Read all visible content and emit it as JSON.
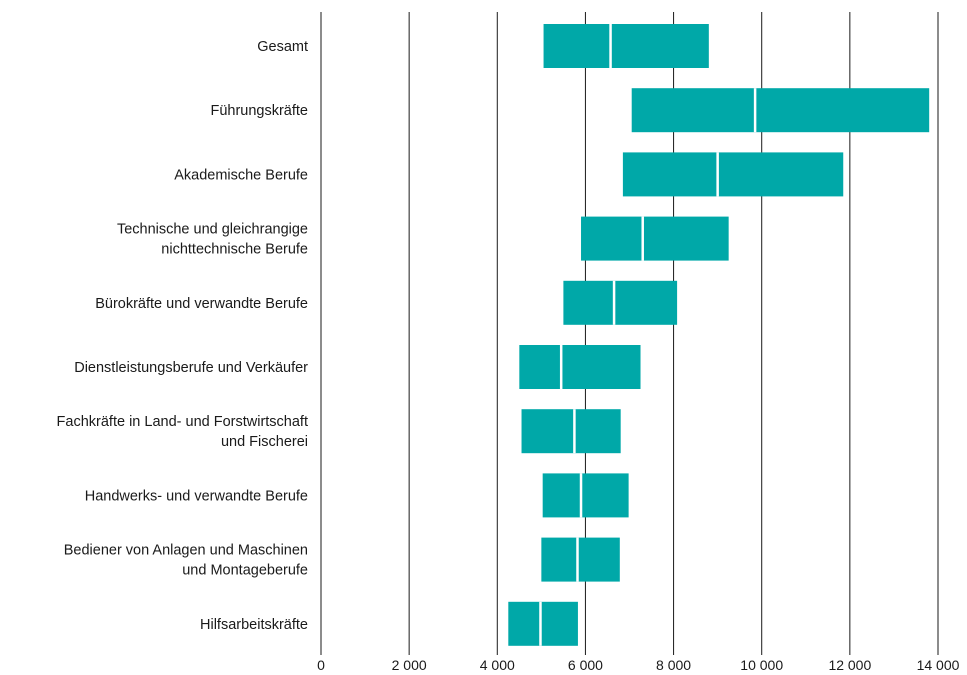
{
  "chart_data": {
    "type": "boxplot-range",
    "title": "",
    "xlabel": "",
    "ylabel": "",
    "xlim": [
      0,
      14000
    ],
    "x_ticks": [
      0,
      2000,
      4000,
      6000,
      8000,
      10000,
      12000,
      14000
    ],
    "x_tick_labels": [
      "0",
      "2 000",
      "4 000",
      "6 000",
      "8 000",
      "10 000",
      "12 000",
      "14 000"
    ],
    "grid": "vertical",
    "color": "#00a8a8",
    "categories": [
      "Gesamt",
      "Führungskräfte",
      "Akademische Berufe",
      "Technische und gleichrangige nichttechnische Berufe",
      "Bürokräfte und verwandte Berufe",
      "Dienstleistungsberufe und Verkäufer",
      "Fachkräfte in Land- und Forstwirtschaft und Fischerei",
      "Handwerks- und verwandte Berufe",
      "Bediener von Anlagen und Maschinen und Montageberufe",
      "Hilfsarbeitskräfte"
    ],
    "category_label_lines": [
      [
        "Gesamt"
      ],
      [
        "Führungskräfte"
      ],
      [
        "Akademische Berufe"
      ],
      [
        "Technische und gleichrangige",
        "nichttechnische Berufe"
      ],
      [
        "Bürokräfte und verwandte Berufe"
      ],
      [
        "Dienstleistungsberufe und Verkäufer"
      ],
      [
        "Fachkräfte in Land- und Forstwirtschaft",
        "und Fischerei"
      ],
      [
        "Handwerks- und verwandte Berufe"
      ],
      [
        "Bediener von Anlagen und Maschinen",
        "und Montageberufe"
      ],
      [
        "Hilfsarbeitskräfte"
      ]
    ],
    "ranges": [
      {
        "low": 5050,
        "median": 6570,
        "high": 8800
      },
      {
        "low": 7050,
        "median": 9850,
        "high": 13800
      },
      {
        "low": 6850,
        "median": 9000,
        "high": 11850
      },
      {
        "low": 5900,
        "median": 7300,
        "high": 9250
      },
      {
        "low": 5500,
        "median": 6650,
        "high": 8080
      },
      {
        "low": 4500,
        "median": 5450,
        "high": 7250
      },
      {
        "low": 4550,
        "median": 5750,
        "high": 6800
      },
      {
        "low": 5030,
        "median": 5900,
        "high": 6980
      },
      {
        "low": 5000,
        "median": 5820,
        "high": 6780
      },
      {
        "low": 4250,
        "median": 4980,
        "high": 5830
      }
    ]
  }
}
